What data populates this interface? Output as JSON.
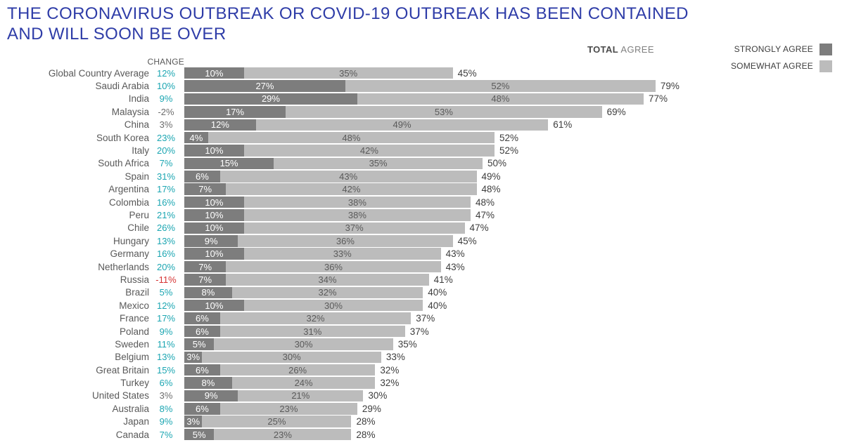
{
  "title": {
    "line1": "THE CORONAVIRUS OUTBREAK OR COVID-19 OUTBREAK HAS BEEN CONTAINED",
    "line2": "AND WILL SOON BE OVER",
    "full": "THE CORONAVIRUS OUTBREAK OR COVID-19 OUTBREAK HAS BEEN CONTAINED AND WILL SOON BE OVER"
  },
  "header": {
    "change_label": "CHANGE",
    "total_label_bold": "TOTAL",
    "total_label_rest": " AGREE"
  },
  "legend": [
    {
      "label": "STRONGLY AGREE",
      "color_key": "strongly"
    },
    {
      "label": "SOMEWHAT AGREE",
      "color_key": "somewhat"
    }
  ],
  "colors": {
    "title_blue": "#2f3da8",
    "strongly": "#7d7d7d",
    "somewhat": "#bcbcbc",
    "positive": "#1ca6b2",
    "negative": "#d63535",
    "neutral": "#6d6d6d"
  },
  "chart_data": {
    "type": "bar",
    "stacked": true,
    "orientation": "horizontal",
    "series": [
      "STRONGLY AGREE",
      "SOMEWHAT AGREE"
    ],
    "x_axis_percent_range": [
      0,
      100
    ],
    "grid": false,
    "legend_position": "top-right",
    "rows": [
      {
        "country": "Global Country Average",
        "change": "12%",
        "change_tone": "positive",
        "strongly": 10,
        "somewhat": 35,
        "total": 45
      },
      {
        "country": "Saudi Arabia",
        "change": "10%",
        "change_tone": "positive",
        "strongly": 27,
        "somewhat": 52,
        "total": 79
      },
      {
        "country": "India",
        "change": "9%",
        "change_tone": "positive",
        "strongly": 29,
        "somewhat": 48,
        "total": 77
      },
      {
        "country": "Malaysia",
        "change": "-2%",
        "change_tone": "neutral",
        "strongly": 17,
        "somewhat": 53,
        "total": 69
      },
      {
        "country": "China",
        "change": "3%",
        "change_tone": "neutral",
        "strongly": 12,
        "somewhat": 49,
        "total": 61
      },
      {
        "country": "South Korea",
        "change": "23%",
        "change_tone": "positive",
        "strongly": 4,
        "somewhat": 48,
        "total": 52
      },
      {
        "country": "Italy",
        "change": "20%",
        "change_tone": "positive",
        "strongly": 10,
        "somewhat": 42,
        "total": 52
      },
      {
        "country": "South Africa",
        "change": "7%",
        "change_tone": "positive",
        "strongly": 15,
        "somewhat": 35,
        "total": 50
      },
      {
        "country": "Spain",
        "change": "31%",
        "change_tone": "positive",
        "strongly": 6,
        "somewhat": 43,
        "total": 49
      },
      {
        "country": "Argentina",
        "change": "17%",
        "change_tone": "positive",
        "strongly": 7,
        "somewhat": 42,
        "total": 48
      },
      {
        "country": "Colombia",
        "change": "16%",
        "change_tone": "positive",
        "strongly": 10,
        "somewhat": 38,
        "total": 48
      },
      {
        "country": "Peru",
        "change": "21%",
        "change_tone": "positive",
        "strongly": 10,
        "somewhat": 38,
        "total": 47
      },
      {
        "country": "Chile",
        "change": "26%",
        "change_tone": "positive",
        "strongly": 10,
        "somewhat": 37,
        "total": 47
      },
      {
        "country": "Hungary",
        "change": "13%",
        "change_tone": "positive",
        "strongly": 9,
        "somewhat": 36,
        "total": 45
      },
      {
        "country": "Germany",
        "change": "16%",
        "change_tone": "positive",
        "strongly": 10,
        "somewhat": 33,
        "total": 43
      },
      {
        "country": "Netherlands",
        "change": "20%",
        "change_tone": "positive",
        "strongly": 7,
        "somewhat": 36,
        "total": 43
      },
      {
        "country": "Russia",
        "change": "-11%",
        "change_tone": "negative",
        "strongly": 7,
        "somewhat": 34,
        "total": 41
      },
      {
        "country": "Brazil",
        "change": "5%",
        "change_tone": "positive",
        "strongly": 8,
        "somewhat": 32,
        "total": 40
      },
      {
        "country": "Mexico",
        "change": "12%",
        "change_tone": "positive",
        "strongly": 10,
        "somewhat": 30,
        "total": 40
      },
      {
        "country": "France",
        "change": "17%",
        "change_tone": "positive",
        "strongly": 6,
        "somewhat": 32,
        "total": 37
      },
      {
        "country": "Poland",
        "change": "9%",
        "change_tone": "positive",
        "strongly": 6,
        "somewhat": 31,
        "total": 37
      },
      {
        "country": "Sweden",
        "change": "11%",
        "change_tone": "positive",
        "strongly": 5,
        "somewhat": 30,
        "total": 35
      },
      {
        "country": "Belgium",
        "change": "13%",
        "change_tone": "positive",
        "strongly": 3,
        "somewhat": 30,
        "total": 33
      },
      {
        "country": "Great Britain",
        "change": "15%",
        "change_tone": "positive",
        "strongly": 6,
        "somewhat": 26,
        "total": 32
      },
      {
        "country": "Turkey",
        "change": "6%",
        "change_tone": "positive",
        "strongly": 8,
        "somewhat": 24,
        "total": 32
      },
      {
        "country": "United States",
        "change": "3%",
        "change_tone": "neutral",
        "strongly": 9,
        "somewhat": 21,
        "total": 30
      },
      {
        "country": "Australia",
        "change": "8%",
        "change_tone": "positive",
        "strongly": 6,
        "somewhat": 23,
        "total": 29
      },
      {
        "country": "Japan",
        "change": "9%",
        "change_tone": "positive",
        "strongly": 3,
        "somewhat": 25,
        "total": 28
      },
      {
        "country": "Canada",
        "change": "7%",
        "change_tone": "positive",
        "strongly": 5,
        "somewhat": 23,
        "total": 28
      }
    ]
  }
}
